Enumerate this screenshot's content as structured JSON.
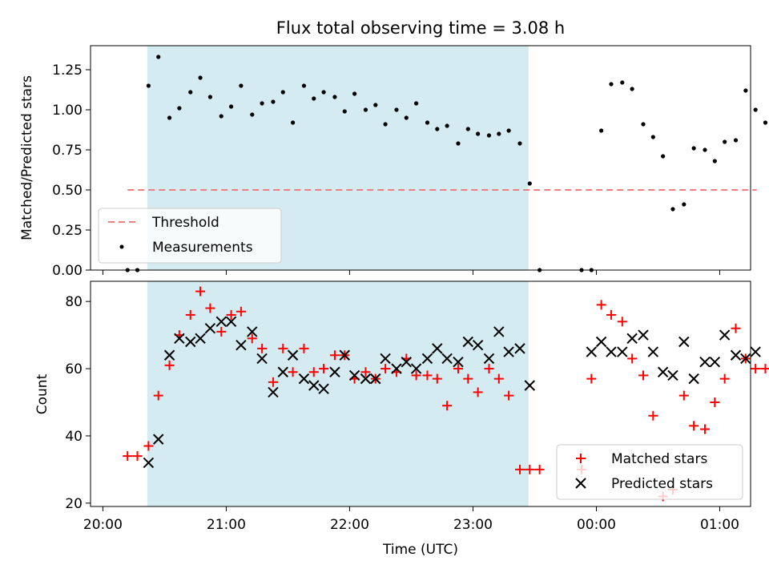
{
  "colors": {
    "shade": "#d4ebf1",
    "threshold": "#f08080",
    "matched": "#ff0000",
    "predicted": "#000000",
    "measurement": "#000000"
  },
  "chart_data": [
    {
      "type": "scatter",
      "title": "Flux total observing time = 3.08 h",
      "xlabel": "",
      "ylabel": "Matched/Predicted stars",
      "xlim": [
        -0.1,
        5.25
      ],
      "ylim": [
        0,
        1.4
      ],
      "yticks": [
        0.0,
        0.25,
        0.5,
        0.75,
        1.0,
        1.25
      ],
      "ytick_labels": [
        "0.00",
        "0.25",
        "0.50",
        "0.75",
        "1.00",
        "1.25"
      ],
      "shaded_range": [
        0.36,
        3.45
      ],
      "threshold": {
        "name": "Threshold",
        "value": 0.5,
        "x_range": [
          0.2,
          5.3
        ]
      },
      "legend": [
        "Threshold",
        "Measurements"
      ],
      "legend_position": "lower-left",
      "series": [
        {
          "name": "Measurements",
          "x": [
            0.2,
            0.28,
            0.37,
            0.45,
            0.54,
            0.62,
            0.71,
            0.79,
            0.87,
            0.96,
            1.04,
            1.12,
            1.21,
            1.29,
            1.38,
            1.46,
            1.54,
            1.63,
            1.71,
            1.79,
            1.88,
            1.96,
            2.04,
            2.13,
            2.21,
            2.29,
            2.38,
            2.46,
            2.54,
            2.63,
            2.71,
            2.79,
            2.88,
            2.96,
            3.04,
            3.13,
            3.21,
            3.29,
            3.38,
            3.46,
            3.54,
            3.88,
            3.96,
            4.04,
            4.12,
            4.21,
            4.29,
            4.38,
            4.46,
            4.54,
            4.62,
            4.71,
            4.79,
            4.88,
            4.96,
            5.04,
            5.13,
            5.21,
            5.29,
            5.37
          ],
          "values": [
            0.0,
            0.0,
            1.15,
            1.33,
            0.95,
            1.01,
            1.11,
            1.2,
            1.08,
            0.96,
            1.02,
            1.15,
            0.97,
            1.04,
            1.05,
            1.11,
            0.92,
            1.15,
            1.07,
            1.11,
            1.08,
            0.99,
            1.1,
            1.0,
            1.03,
            0.91,
            1.0,
            0.95,
            1.04,
            0.92,
            0.88,
            0.9,
            0.79,
            0.88,
            0.85,
            0.84,
            0.85,
            0.87,
            0.79,
            0.54,
            0.0,
            0.0,
            0.0,
            0.87,
            1.16,
            1.17,
            1.13,
            0.91,
            0.83,
            0.71,
            0.38,
            0.41,
            0.76,
            0.75,
            0.68,
            0.8,
            0.81,
            1.12,
            1.0,
            0.92
          ]
        }
      ]
    },
    {
      "type": "scatter",
      "title": "",
      "xlabel": "Time (UTC)",
      "ylabel": "Count",
      "xlim": [
        -0.1,
        5.25
      ],
      "ylim": [
        19,
        86
      ],
      "yticks": [
        20,
        40,
        60,
        80
      ],
      "ytick_labels": [
        "20",
        "40",
        "60",
        "80"
      ],
      "xticks": [
        0,
        1,
        2,
        3,
        4,
        5
      ],
      "xtick_labels": [
        "20:00",
        "21:00",
        "22:00",
        "23:00",
        "00:00",
        "01:00"
      ],
      "shaded_range": [
        0.36,
        3.45
      ],
      "legend": [
        "Matched stars",
        "Predicted stars"
      ],
      "legend_position": "lower-right",
      "series": [
        {
          "name": "Matched stars",
          "marker": "plus",
          "x": [
            0.2,
            0.28,
            0.37,
            0.45,
            0.54,
            0.62,
            0.71,
            0.79,
            0.87,
            0.96,
            1.04,
            1.12,
            1.21,
            1.29,
            1.38,
            1.46,
            1.54,
            1.63,
            1.71,
            1.79,
            1.88,
            1.96,
            2.04,
            2.13,
            2.21,
            2.29,
            2.38,
            2.46,
            2.54,
            2.63,
            2.71,
            2.79,
            2.88,
            2.96,
            3.04,
            3.13,
            3.21,
            3.29,
            3.38,
            3.46,
            3.54,
            3.88,
            3.96,
            4.04,
            4.12,
            4.21,
            4.29,
            4.38,
            4.46,
            4.54,
            4.62,
            4.71,
            4.79,
            4.88,
            4.96,
            5.04,
            5.13,
            5.21,
            5.29,
            5.37
          ],
          "values": [
            34,
            34,
            37,
            52,
            61,
            70,
            76,
            83,
            78,
            71,
            76,
            77,
            69,
            66,
            56,
            66,
            59,
            66,
            59,
            60,
            64,
            64,
            57,
            59,
            57,
            60,
            59,
            63,
            58,
            58,
            57,
            49,
            60,
            57,
            53,
            60,
            57,
            52,
            30,
            30,
            30,
            30,
            57,
            79,
            76,
            74,
            63,
            58,
            46,
            22,
            24,
            52,
            43,
            42,
            50,
            57,
            72,
            63,
            60,
            60
          ]
        },
        {
          "name": "Predicted stars",
          "marker": "x",
          "x": [
            0.37,
            0.45,
            0.54,
            0.62,
            0.71,
            0.79,
            0.87,
            0.96,
            1.04,
            1.12,
            1.21,
            1.29,
            1.38,
            1.46,
            1.54,
            1.63,
            1.71,
            1.79,
            1.88,
            1.96,
            2.04,
            2.13,
            2.21,
            2.29,
            2.38,
            2.46,
            2.54,
            2.63,
            2.71,
            2.79,
            2.88,
            2.96,
            3.04,
            3.13,
            3.21,
            3.29,
            3.38,
            3.46,
            3.96,
            4.04,
            4.12,
            4.21,
            4.29,
            4.38,
            4.46,
            4.54,
            4.62,
            4.71,
            4.79,
            4.88,
            4.96,
            5.04,
            5.13,
            5.21,
            5.29
          ],
          "values": [
            32,
            39,
            64,
            69,
            68,
            69,
            72,
            74,
            74,
            67,
            71,
            63,
            53,
            59,
            64,
            57,
            55,
            54,
            59,
            64,
            58,
            57,
            57,
            63,
            60,
            62,
            60,
            63,
            66,
            63,
            62,
            68,
            67,
            63,
            71,
            65,
            66,
            55,
            65,
            68,
            65,
            65,
            69,
            70,
            65,
            59,
            58,
            68,
            57,
            62,
            62,
            70,
            64,
            63,
            65
          ]
        }
      ]
    }
  ]
}
